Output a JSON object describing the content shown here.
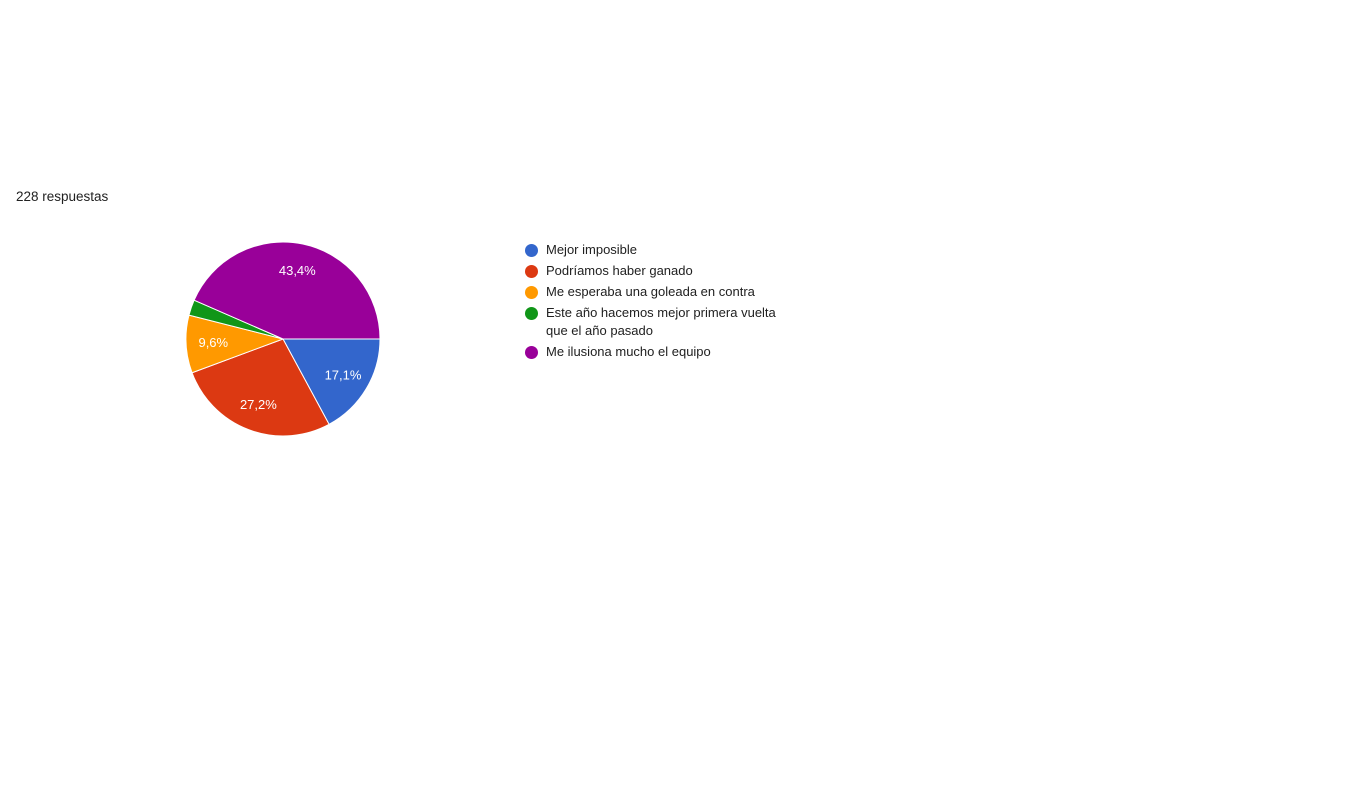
{
  "page": {
    "background": "#ffffff"
  },
  "response_count": {
    "text": "228 respuestas"
  },
  "chart_data": {
    "type": "pie",
    "title": "",
    "legend_position": "right",
    "start_angle_deg": 0,
    "direction": "clockwise",
    "slice_border_color": "#ffffff",
    "categories": [
      "Mejor imposible",
      "Podríamos haber ganado",
      "Me esperaba una goleada en contra",
      "Este año hacemos mejor primera vuelta que el año pasado",
      "Me ilusiona mucho el equipo"
    ],
    "values_percent": [
      17.1,
      27.2,
      9.6,
      2.6,
      43.4
    ],
    "slice_labels": [
      "17,1%",
      "27,2%",
      "9,6%",
      "",
      "43,4%"
    ],
    "colors": [
      "#3366cc",
      "#dc3912",
      "#ff9900",
      "#109618",
      "#990099"
    ]
  }
}
